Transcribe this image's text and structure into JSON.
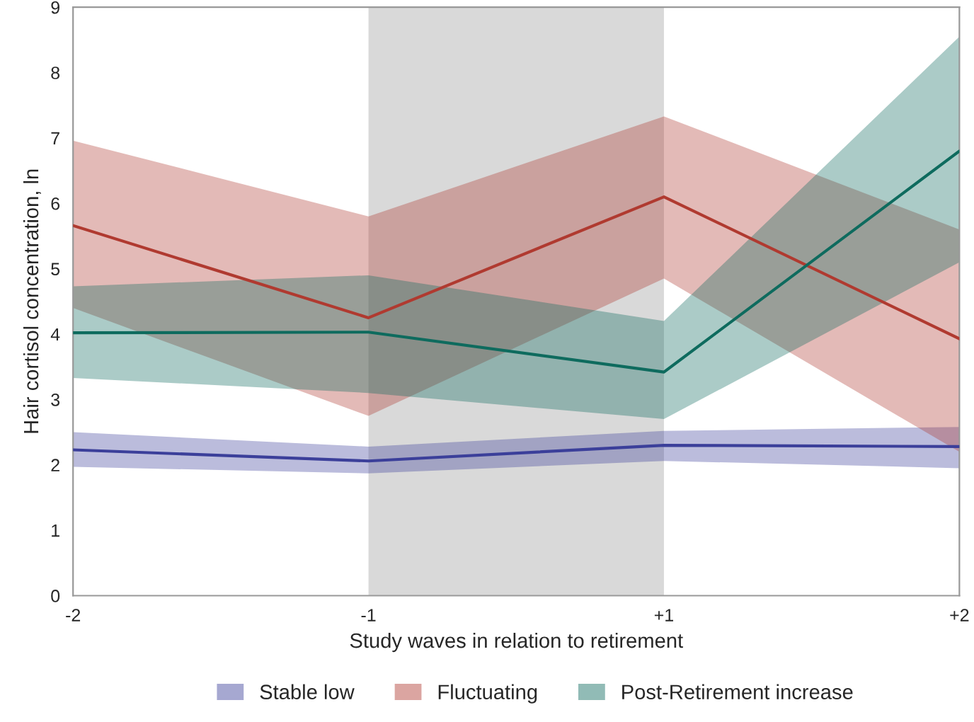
{
  "chart_data": {
    "type": "line",
    "xlabel": "Study waves in relation to retirement",
    "ylabel": "Hair cortisol concentration, ln",
    "categories": [
      "-2",
      "-1",
      "+1",
      "+2"
    ],
    "ylim": [
      0,
      9
    ],
    "yticks": [
      0,
      1,
      2,
      3,
      4,
      5,
      6,
      7,
      8,
      9
    ],
    "grid": false,
    "legend": "bottom",
    "marker": "none",
    "line_style": "solid",
    "bands": [
      {
        "axis": "x",
        "from": "-1",
        "to": "+1",
        "color": "#d9d9d9"
      }
    ],
    "series": [
      {
        "name": "Stable low",
        "color": "#3b3f9a",
        "values": [
          2.23,
          2.06,
          2.3,
          2.28
        ],
        "lower": [
          1.97,
          1.87,
          2.06,
          1.95
        ],
        "upper": [
          2.5,
          2.28,
          2.52,
          2.58
        ]
      },
      {
        "name": "Fluctuating",
        "color": "#b03a30",
        "values": [
          5.66,
          4.25,
          6.1,
          3.93
        ],
        "lower": [
          4.4,
          2.75,
          4.85,
          2.2
        ],
        "upper": [
          6.96,
          5.8,
          7.33,
          5.6
        ]
      },
      {
        "name": "Post-Retirement increase",
        "color": "#0e6b5e",
        "values": [
          4.02,
          4.03,
          3.42,
          6.8
        ],
        "lower": [
          3.33,
          3.1,
          2.7,
          5.1
        ],
        "upper": [
          4.73,
          4.9,
          4.2,
          8.55
        ]
      }
    ]
  }
}
